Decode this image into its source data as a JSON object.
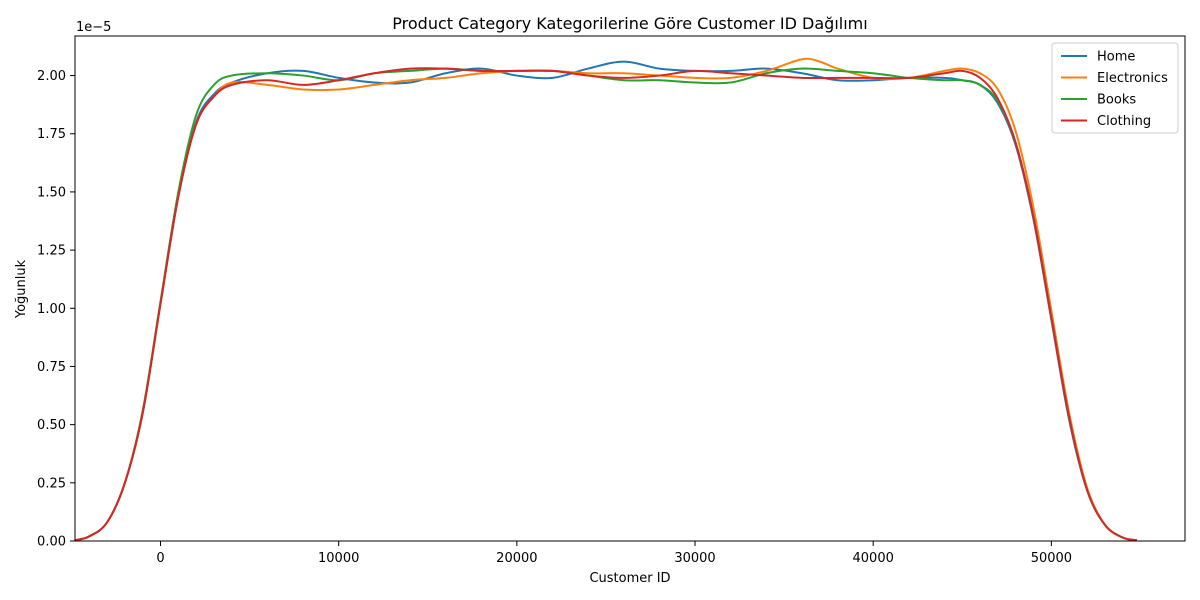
{
  "chart_data": {
    "type": "line",
    "title": "Product Category Kategorilerine Göre Customer ID Dağılımı",
    "xlabel": "Customer ID",
    "ylabel": "Yoğunluk",
    "y_scale_label": "1e−5",
    "xlim": [
      -4800,
      57500
    ],
    "ylim": [
      0,
      2.17
    ],
    "xticks": [
      0,
      10000,
      20000,
      30000,
      40000,
      50000
    ],
    "xtick_labels": [
      "0",
      "10000",
      "20000",
      "30000",
      "40000",
      "50000"
    ],
    "yticks": [
      0,
      0.25,
      0.5,
      0.75,
      1.0,
      1.25,
      1.5,
      1.75,
      2.0
    ],
    "ytick_labels": [
      "0.00",
      "0.25",
      "0.50",
      "0.75",
      "1.00",
      "1.25",
      "1.50",
      "1.75",
      "2.00"
    ],
    "grid": false,
    "legend_position": "top-right",
    "series": [
      {
        "name": "Home",
        "color": "#1f77b4",
        "x": [
          -4800,
          -4000,
          -3000,
          -2000,
          -1000,
          0,
          1000,
          2000,
          3000,
          4000,
          6000,
          8000,
          10000,
          12000,
          14000,
          16000,
          18000,
          20000,
          22000,
          24000,
          26000,
          28000,
          30000,
          32000,
          34000,
          36000,
          38000,
          40000,
          42000,
          44000,
          45000,
          46000,
          47000,
          48000,
          49000,
          50000,
          51000,
          52000,
          53000,
          54000,
          54800
        ],
        "y": [
          0.003,
          0.02,
          0.08,
          0.25,
          0.55,
          1.02,
          1.48,
          1.8,
          1.92,
          1.97,
          2.01,
          2.02,
          1.99,
          1.97,
          1.97,
          2.01,
          2.03,
          2.0,
          1.99,
          2.03,
          2.06,
          2.03,
          2.02,
          2.02,
          2.03,
          2.01,
          1.98,
          1.98,
          1.99,
          1.99,
          1.98,
          1.96,
          1.88,
          1.7,
          1.38,
          0.95,
          0.52,
          0.22,
          0.07,
          0.015,
          0.003
        ]
      },
      {
        "name": "Electronics",
        "color": "#ff7f0e",
        "x": [
          -4800,
          -4000,
          -3000,
          -2000,
          -1000,
          0,
          1000,
          2000,
          3000,
          4000,
          6000,
          8000,
          10000,
          12000,
          14000,
          16000,
          18000,
          20000,
          22000,
          24000,
          26000,
          28000,
          30000,
          32000,
          34000,
          36000,
          37000,
          38000,
          40000,
          42000,
          44000,
          45000,
          46000,
          47000,
          48000,
          49000,
          50000,
          51000,
          52000,
          53000,
          54000,
          54800
        ],
        "y": [
          0.003,
          0.02,
          0.08,
          0.25,
          0.55,
          1.02,
          1.48,
          1.79,
          1.91,
          1.97,
          1.96,
          1.94,
          1.94,
          1.96,
          1.98,
          1.99,
          2.01,
          2.02,
          2.02,
          2.01,
          2.01,
          2.0,
          1.99,
          1.99,
          2.02,
          2.07,
          2.06,
          2.03,
          1.99,
          1.99,
          2.02,
          2.03,
          2.01,
          1.94,
          1.76,
          1.43,
          0.99,
          0.55,
          0.23,
          0.07,
          0.015,
          0.003
        ]
      },
      {
        "name": "Books",
        "color": "#2ca02c",
        "x": [
          -4800,
          -4000,
          -3000,
          -2000,
          -1000,
          0,
          1000,
          2000,
          3000,
          4000,
          6000,
          8000,
          10000,
          12000,
          14000,
          16000,
          18000,
          20000,
          22000,
          24000,
          26000,
          28000,
          30000,
          32000,
          34000,
          36000,
          38000,
          40000,
          42000,
          44000,
          45000,
          46000,
          47000,
          48000,
          49000,
          50000,
          51000,
          52000,
          53000,
          54000,
          54800
        ],
        "y": [
          0.003,
          0.02,
          0.08,
          0.25,
          0.56,
          1.03,
          1.5,
          1.83,
          1.96,
          2.0,
          2.01,
          2.0,
          1.98,
          2.01,
          2.02,
          2.03,
          2.02,
          2.02,
          2.02,
          2.0,
          1.98,
          1.98,
          1.97,
          1.97,
          2.01,
          2.03,
          2.02,
          2.01,
          1.99,
          1.98,
          1.98,
          1.96,
          1.89,
          1.71,
          1.39,
          0.96,
          0.53,
          0.22,
          0.07,
          0.015,
          0.003
        ]
      },
      {
        "name": "Clothing",
        "color": "#d62728",
        "x": [
          -4800,
          -4000,
          -3000,
          -2000,
          -1000,
          0,
          1000,
          2000,
          3000,
          4000,
          6000,
          8000,
          10000,
          12000,
          14000,
          16000,
          18000,
          20000,
          22000,
          24000,
          26000,
          28000,
          30000,
          32000,
          34000,
          36000,
          38000,
          40000,
          42000,
          44000,
          45000,
          46000,
          47000,
          48000,
          49000,
          50000,
          51000,
          52000,
          53000,
          54000,
          54800
        ],
        "y": [
          0.003,
          0.02,
          0.08,
          0.25,
          0.55,
          1.02,
          1.48,
          1.79,
          1.91,
          1.96,
          1.98,
          1.96,
          1.98,
          2.01,
          2.03,
          2.03,
          2.02,
          2.02,
          2.02,
          2.0,
          1.99,
          2.0,
          2.02,
          2.01,
          2.0,
          1.99,
          1.99,
          1.99,
          1.99,
          2.01,
          2.02,
          1.99,
          1.9,
          1.71,
          1.39,
          0.96,
          0.53,
          0.22,
          0.07,
          0.015,
          0.003
        ]
      }
    ]
  }
}
